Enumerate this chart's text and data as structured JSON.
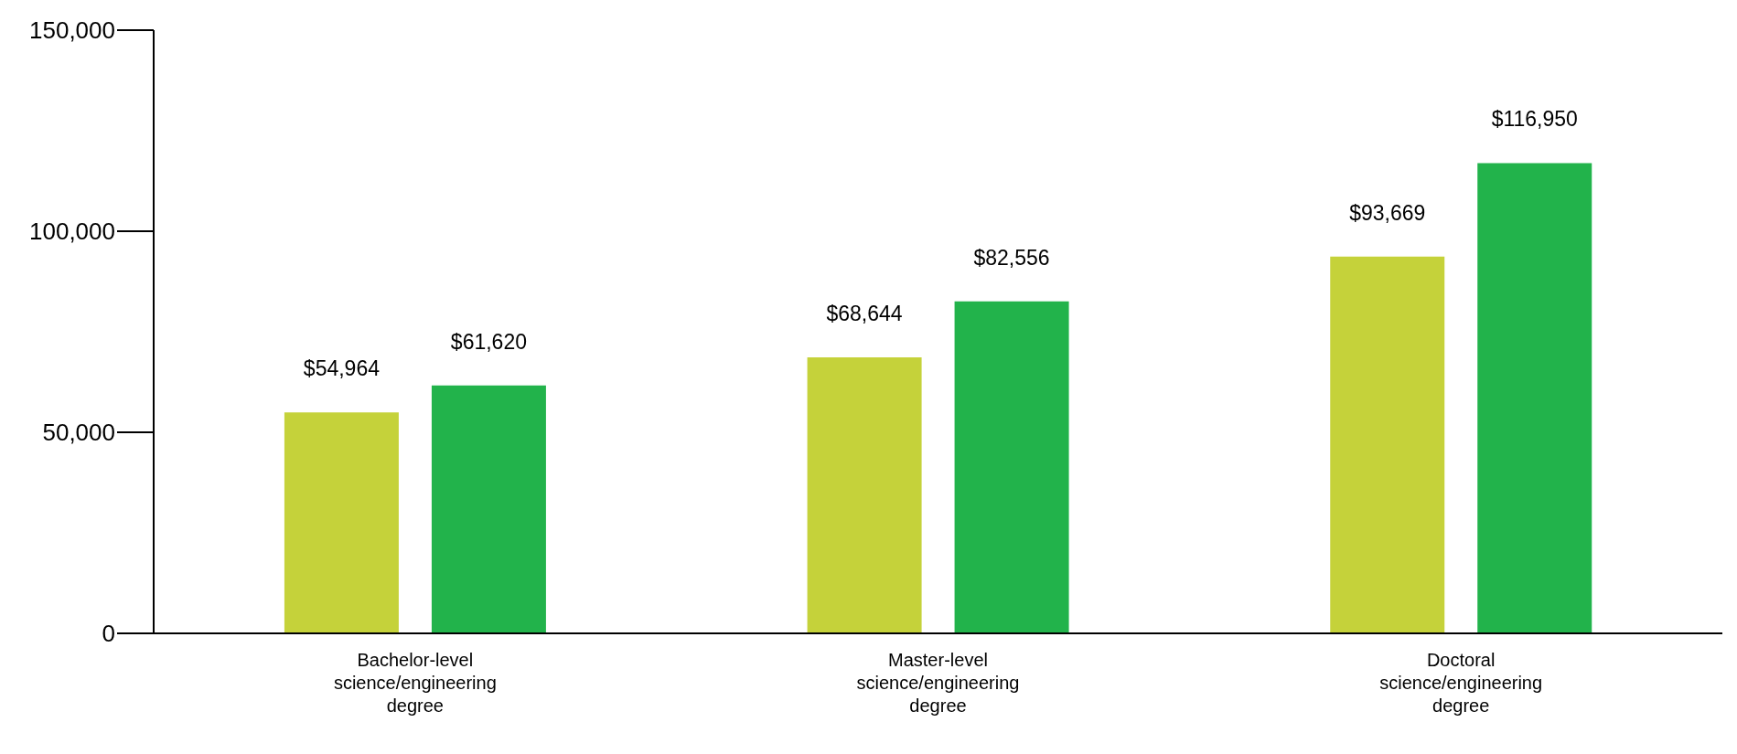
{
  "chart_data": {
    "type": "bar",
    "categories": [
      "Bachelor-level science/engineering degree",
      "Master-level science/engineering degree",
      "Doctoral science/engineering degree"
    ],
    "series": [
      {
        "color": "#c5d23a",
        "values": [
          54964,
          68644,
          93669
        ],
        "value_labels": [
          "$54,964",
          "$68,644",
          "$93,669"
        ]
      },
      {
        "color": "#22b34b",
        "values": [
          61620,
          82556,
          116950
        ],
        "value_labels": [
          "$61,620",
          "$82,556",
          "$116,950"
        ]
      }
    ],
    "ylim": [
      0,
      150000
    ],
    "yticks": [
      0,
      {
        "value": 50000,
        "label": "50,000"
      },
      {
        "value": 100000,
        "label": "100,000"
      },
      {
        "value": 150000,
        "label": "150,000"
      }
    ],
    "grid": false,
    "legend": false
  }
}
